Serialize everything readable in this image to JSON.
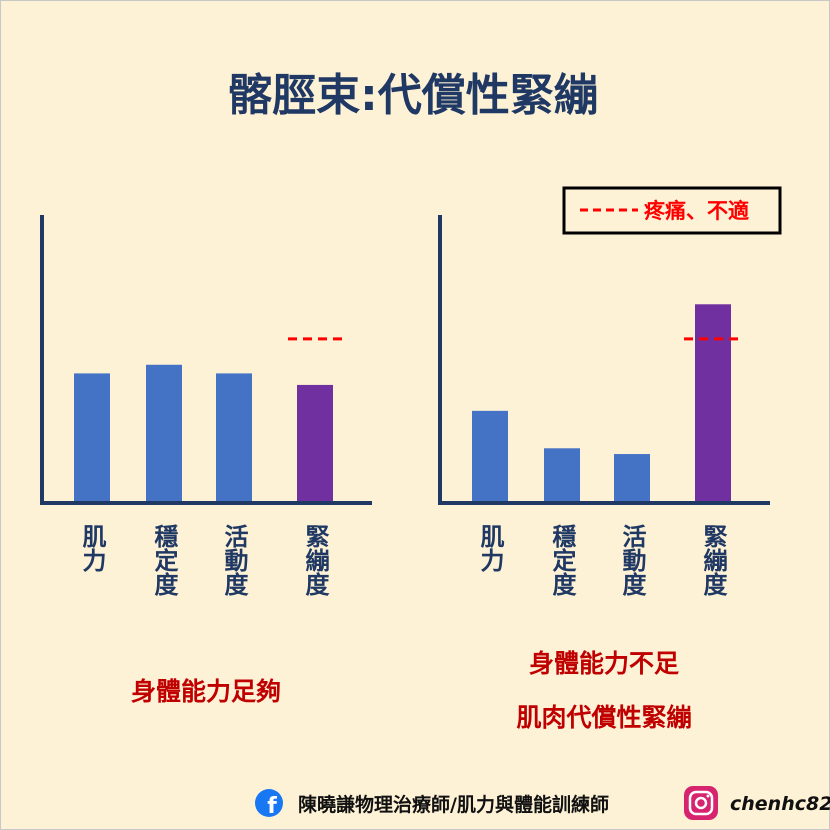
{
  "title": "髂脛束:代償性緊繃",
  "legend": {
    "label": "疼痛、不適",
    "color": "#ff0000"
  },
  "footer": {
    "author": "陳曉謙物理治療師/肌力與體能訓練師",
    "handle": "chenhc82"
  },
  "chart_data": [
    {
      "type": "bar",
      "categories": [
        "肌力",
        "穩定度",
        "活動度",
        "緊繃度"
      ],
      "values": [
        45,
        48,
        45,
        41
      ],
      "colors": [
        "#4472c4",
        "#4472c4",
        "#4472c4",
        "#7030a0"
      ],
      "ylim": [
        0,
        100
      ],
      "threshold": 57,
      "caption": [
        "身體能力足夠"
      ]
    },
    {
      "type": "bar",
      "categories": [
        "肌力",
        "穩定度",
        "活動度",
        "緊繃度"
      ],
      "values": [
        32,
        19,
        17,
        69
      ],
      "colors": [
        "#4472c4",
        "#4472c4",
        "#4472c4",
        "#7030a0"
      ],
      "ylim": [
        0,
        100
      ],
      "threshold": 57,
      "caption": [
        "身體能力不足",
        "肌肉代償性緊繃"
      ]
    }
  ]
}
